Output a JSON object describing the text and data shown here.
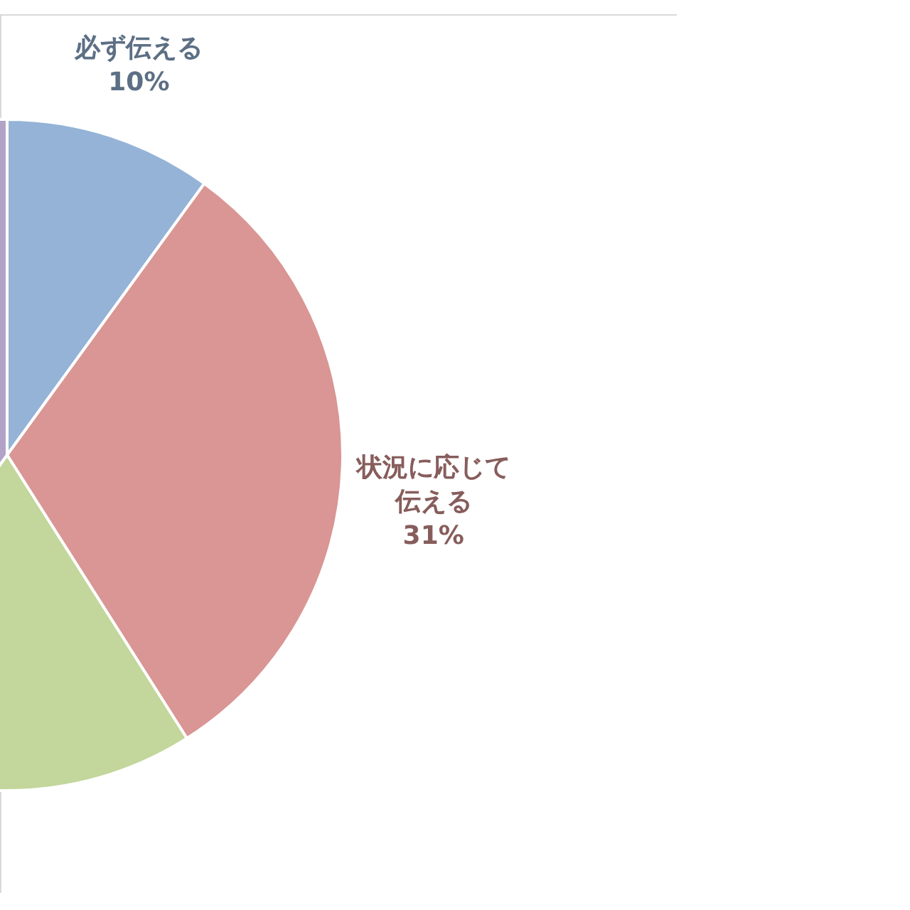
{
  "chart_data": {
    "type": "pie",
    "categories": [
      "必ず伝える",
      "状況に応じて伝える",
      null,
      null
    ],
    "values": [
      10,
      31,
      19,
      40
    ],
    "colors": [
      "#95b3d7",
      "#d99694",
      "#c3d69b",
      "#b3a2c7"
    ],
    "value_labels": [
      "10%",
      "31%",
      null,
      null
    ]
  }
}
